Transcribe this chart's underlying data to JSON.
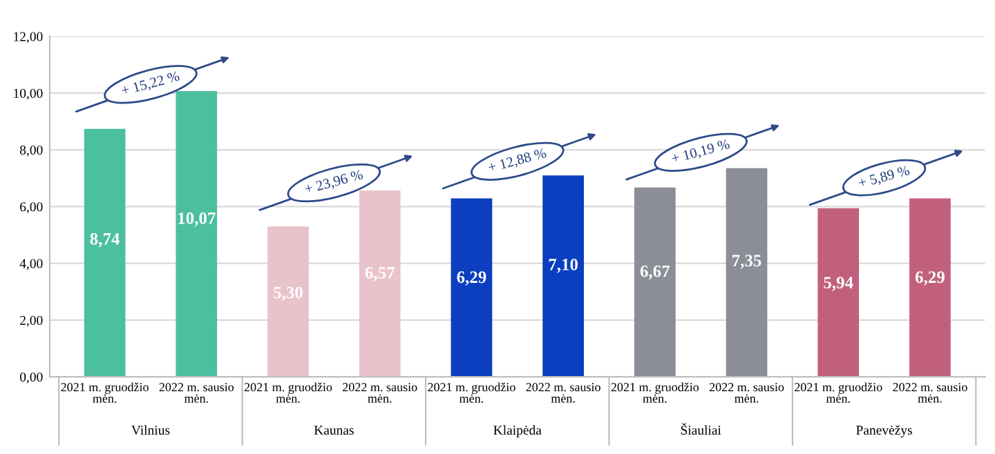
{
  "chart_data": {
    "type": "bar",
    "categories": [
      "2021 m. gruodžio\nmėn.",
      "2022 m. sausio\nmėn.",
      "2021 m. gruodžio\nmėn.",
      "2022 m. sausio\nmėn.",
      "2021 m. gruodžio\nmėn.",
      "2022 m. sausio\nmėn.",
      "2021 m. gruodžio\nmėn.",
      "2022 m. sausio\nmėn.",
      "2021 m. gruodžio\nmėn.",
      "2022 m. sausio\nmėn."
    ],
    "values": [
      8.74,
      10.07,
      5.3,
      6.57,
      6.29,
      7.1,
      6.67,
      7.35,
      5.94,
      6.29
    ],
    "value_labels": [
      "8,74",
      "10,07",
      "5,30",
      "6,57",
      "6,29",
      "7,10",
      "6,67",
      "7,35",
      "5,94",
      "6,29"
    ],
    "colors": [
      "#4cbf9f",
      "#4cbf9f",
      "#e8c3cb",
      "#e8c3cb",
      "#0b3fc0",
      "#0b3fc0",
      "#8b8d97",
      "#8b8d97",
      "#c1607c",
      "#c1607c"
    ],
    "annotations": [
      "Vilnius",
      "Kaunas",
      "Klaipėda",
      "Šiauliai",
      "Panevėžys",
      "+ 15,22 %",
      "+ 23,96 %",
      "+ 12,88 %",
      "+ 10,19 %",
      "+ 5,89 %"
    ],
    "ylim": [
      0,
      12
    ],
    "yticks": [
      {
        "value": 0,
        "label": "0,00"
      },
      {
        "value": 2,
        "label": "2,00"
      },
      {
        "value": 4,
        "label": "4,00"
      },
      {
        "value": 6,
        "label": "6,00"
      },
      {
        "value": 8,
        "label": "8,00"
      },
      {
        "value": 10,
        "label": "10,00"
      },
      {
        "value": 12,
        "label": "12,00"
      }
    ],
    "grid": "y"
  }
}
